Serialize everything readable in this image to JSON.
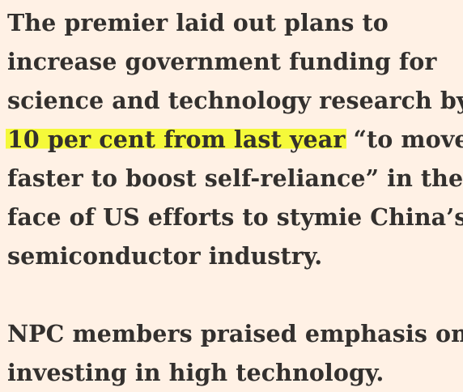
{
  "article": {
    "paragraph1": {
      "line1": "The premier laid out plans to",
      "line2": "increase government funding for",
      "line3": "science and technology research by",
      "line4_highlight": "10 per cent from last year",
      "line4_rest": " “to move",
      "line5": "faster to boost self-reliance” in the",
      "line6": "face of US efforts to stymie China’s",
      "line7": "semiconductor industry."
    },
    "paragraph2": {
      "line1": "NPC members praised emphasis on",
      "line2": "investing in high technology."
    },
    "highlight_color": "#f5f93a",
    "background_color": "#fff1e5",
    "text_color": "#33302e"
  }
}
